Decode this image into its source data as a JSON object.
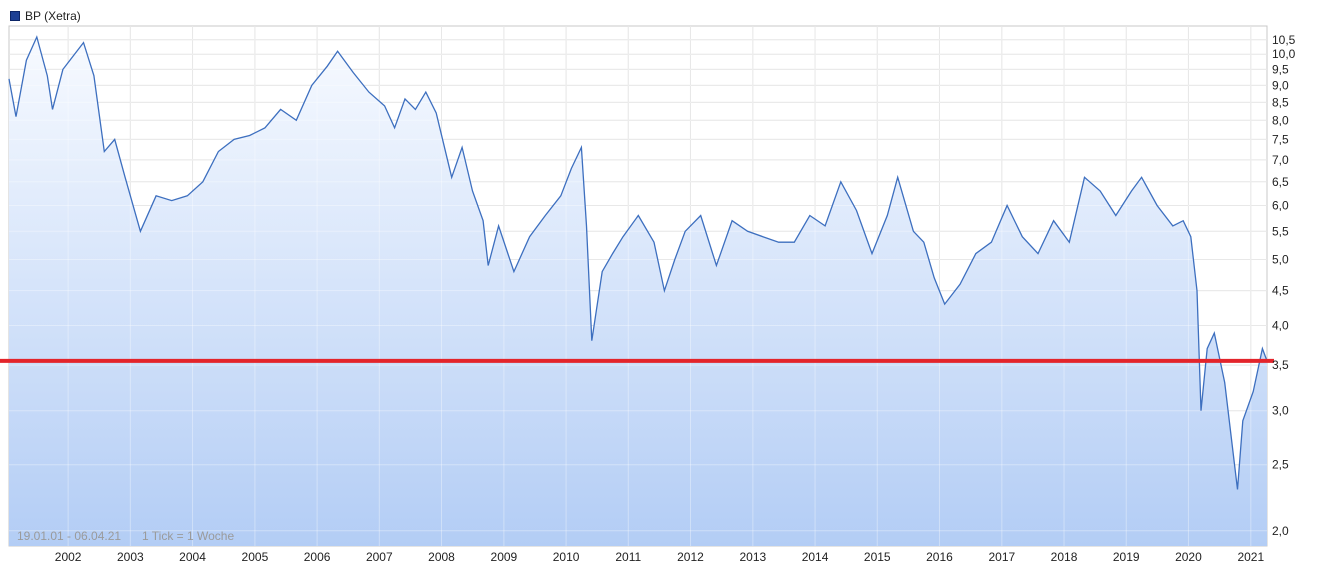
{
  "legend": {
    "label": "BP (Xetra)",
    "color": "#1c3f94"
  },
  "info": {
    "range": "19.01.01 - 06.04.21",
    "tick": "1 Tick = 1 Woche"
  },
  "colors": {
    "line": "#3d6fbf",
    "fill_top": "#f7faff",
    "fill_bottom": "#b3cdf5",
    "grid": "#dcdcdc",
    "reference_line": "#e3242b"
  },
  "chart_data": {
    "type": "area",
    "scale": "log",
    "x_range": [
      "2001-01-19",
      "2021-04-06"
    ],
    "y_range": [
      1.9,
      11.0
    ],
    "x_tick_labels": [
      "2002",
      "2003",
      "2004",
      "2005",
      "2006",
      "2007",
      "2008",
      "2009",
      "2010",
      "2011",
      "2012",
      "2013",
      "2014",
      "2015",
      "2016",
      "2017",
      "2018",
      "2019",
      "2020",
      "2021"
    ],
    "y_tick_labels": [
      "2,0",
      "2,5",
      "3,0",
      "3,5",
      "4,0",
      "4,5",
      "5,0",
      "5,5",
      "6,0",
      "6,5",
      "7,0",
      "7,5",
      "8,0",
      "8,5",
      "9,0",
      "9,5",
      "10,0",
      "10,5"
    ],
    "y_ticks": [
      2.0,
      2.5,
      3.0,
      3.5,
      4.0,
      4.5,
      5.0,
      5.5,
      6.0,
      6.5,
      7.0,
      7.5,
      8.0,
      8.5,
      9.0,
      9.5,
      10.0,
      10.5
    ],
    "reference_line": 3.55,
    "series": [
      {
        "name": "BP (Xetra)",
        "points": [
          [
            "2001-01-19",
            9.2
          ],
          [
            "2001-03-01",
            8.1
          ],
          [
            "2001-05-01",
            9.8
          ],
          [
            "2001-07-01",
            10.6
          ],
          [
            "2001-09-01",
            9.3
          ],
          [
            "2001-10-01",
            8.3
          ],
          [
            "2001-12-01",
            9.5
          ],
          [
            "2002-04-01",
            10.4
          ],
          [
            "2002-06-01",
            9.3
          ],
          [
            "2002-08-01",
            7.2
          ],
          [
            "2002-10-01",
            7.5
          ],
          [
            "2002-12-01",
            6.6
          ],
          [
            "2003-03-01",
            5.5
          ],
          [
            "2003-06-01",
            6.2
          ],
          [
            "2003-09-01",
            6.1
          ],
          [
            "2003-12-01",
            6.2
          ],
          [
            "2004-03-01",
            6.5
          ],
          [
            "2004-06-01",
            7.2
          ],
          [
            "2004-09-01",
            7.5
          ],
          [
            "2004-12-01",
            7.6
          ],
          [
            "2005-03-01",
            7.8
          ],
          [
            "2005-06-01",
            8.3
          ],
          [
            "2005-09-01",
            8.0
          ],
          [
            "2005-12-01",
            9.0
          ],
          [
            "2006-03-01",
            9.6
          ],
          [
            "2006-05-01",
            10.1
          ],
          [
            "2006-08-01",
            9.4
          ],
          [
            "2006-11-01",
            8.8
          ],
          [
            "2007-02-01",
            8.4
          ],
          [
            "2007-04-01",
            7.8
          ],
          [
            "2007-06-01",
            8.6
          ],
          [
            "2007-08-01",
            8.3
          ],
          [
            "2007-10-01",
            8.8
          ],
          [
            "2007-12-01",
            8.2
          ],
          [
            "2008-03-01",
            6.6
          ],
          [
            "2008-05-01",
            7.3
          ],
          [
            "2008-07-01",
            6.3
          ],
          [
            "2008-09-01",
            5.7
          ],
          [
            "2008-10-01",
            4.9
          ],
          [
            "2008-12-01",
            5.6
          ],
          [
            "2009-03-01",
            4.8
          ],
          [
            "2009-06-01",
            5.4
          ],
          [
            "2009-09-01",
            5.8
          ],
          [
            "2009-12-01",
            6.2
          ],
          [
            "2010-02-01",
            6.8
          ],
          [
            "2010-04-01",
            7.3
          ],
          [
            "2010-05-01",
            5.6
          ],
          [
            "2010-06-01",
            3.8
          ],
          [
            "2010-08-01",
            4.8
          ],
          [
            "2010-10-01",
            5.1
          ],
          [
            "2010-12-01",
            5.4
          ],
          [
            "2011-03-01",
            5.8
          ],
          [
            "2011-06-01",
            5.3
          ],
          [
            "2011-08-01",
            4.5
          ],
          [
            "2011-10-01",
            5.0
          ],
          [
            "2011-12-01",
            5.5
          ],
          [
            "2012-03-01",
            5.8
          ],
          [
            "2012-06-01",
            4.9
          ],
          [
            "2012-09-01",
            5.7
          ],
          [
            "2012-12-01",
            5.5
          ],
          [
            "2013-03-01",
            5.4
          ],
          [
            "2013-06-01",
            5.3
          ],
          [
            "2013-09-01",
            5.3
          ],
          [
            "2013-12-01",
            5.8
          ],
          [
            "2014-03-01",
            5.6
          ],
          [
            "2014-06-01",
            6.5
          ],
          [
            "2014-09-01",
            5.9
          ],
          [
            "2014-12-01",
            5.1
          ],
          [
            "2015-03-01",
            5.8
          ],
          [
            "2015-05-01",
            6.6
          ],
          [
            "2015-08-01",
            5.5
          ],
          [
            "2015-10-01",
            5.3
          ],
          [
            "2015-12-01",
            4.7
          ],
          [
            "2016-02-01",
            4.3
          ],
          [
            "2016-05-01",
            4.6
          ],
          [
            "2016-08-01",
            5.1
          ],
          [
            "2016-11-01",
            5.3
          ],
          [
            "2017-02-01",
            6.0
          ],
          [
            "2017-05-01",
            5.4
          ],
          [
            "2017-08-01",
            5.1
          ],
          [
            "2017-11-01",
            5.7
          ],
          [
            "2018-02-01",
            5.3
          ],
          [
            "2018-05-01",
            6.6
          ],
          [
            "2018-08-01",
            6.3
          ],
          [
            "2018-11-01",
            5.8
          ],
          [
            "2019-02-01",
            6.3
          ],
          [
            "2019-04-01",
            6.6
          ],
          [
            "2019-07-01",
            6.0
          ],
          [
            "2019-10-01",
            5.6
          ],
          [
            "2019-12-01",
            5.7
          ],
          [
            "2020-01-15",
            5.4
          ],
          [
            "2020-02-20",
            4.5
          ],
          [
            "2020-03-15",
            3.0
          ],
          [
            "2020-04-20",
            3.7
          ],
          [
            "2020-06-01",
            3.9
          ],
          [
            "2020-08-01",
            3.3
          ],
          [
            "2020-10-15",
            2.3
          ],
          [
            "2020-11-15",
            2.9
          ],
          [
            "2021-01-15",
            3.2
          ],
          [
            "2021-03-10",
            3.7
          ],
          [
            "2021-04-06",
            3.55
          ]
        ]
      }
    ]
  }
}
